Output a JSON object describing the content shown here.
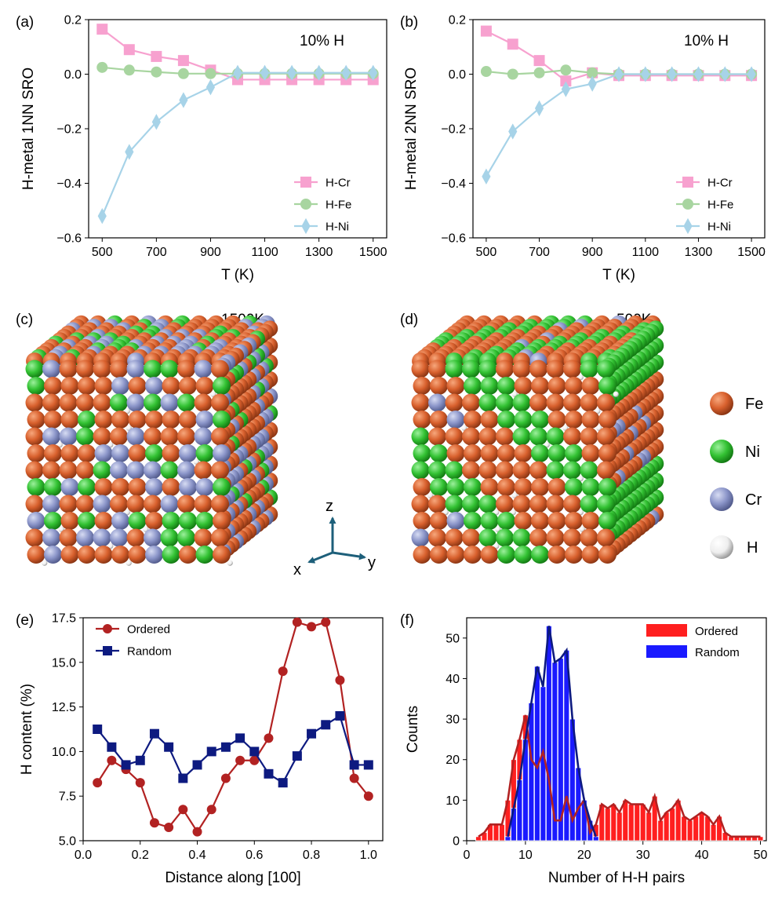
{
  "colors": {
    "cr_line": "#f7a1cf",
    "fe_line": "#a8d5a0",
    "ni_line": "#a7d3e8",
    "ordered": "#b22222",
    "random": "#0d1a80",
    "hist_ordered": "#ff1f1f",
    "hist_random": "#1a1aff",
    "fe_atom": "#d8602d",
    "ni_atom": "#33c233",
    "cr_atom": "#8b95c9",
    "h_atom": "#f3f3f3",
    "arrow": "#1d5f7a"
  },
  "axes_text": {
    "coord_axes": {
      "x": "x",
      "y": "y",
      "z": "z"
    },
    "atom_legend": {
      "fe": "Fe",
      "ni": "Ni",
      "cr": "Cr",
      "h": "H"
    }
  },
  "panels": {
    "c": {
      "label": "(c)",
      "temp": "1500K"
    },
    "d": {
      "label": "(d)",
      "temp": "500K"
    }
  },
  "chart_data": [
    {
      "id": "a",
      "panel_label": "(a)",
      "type": "line",
      "annotation": "10% H",
      "xlabel": "T (K)",
      "ylabel": "H-metal 1NN SRO",
      "xlim": [
        450,
        1550
      ],
      "ylim": [
        -0.6,
        0.2
      ],
      "xticks": [
        500,
        700,
        900,
        1100,
        1300,
        1500
      ],
      "yticks": [
        -0.6,
        -0.4,
        -0.2,
        0.0,
        0.2
      ],
      "ytick_labels": [
        "−0.6",
        "−0.4",
        "−0.2",
        "0.0",
        "0.2"
      ],
      "x": [
        500,
        600,
        700,
        800,
        900,
        1000,
        1100,
        1200,
        1300,
        1400,
        1500
      ],
      "series": [
        {
          "name": "H-Cr",
          "marker": "square",
          "color_key": "cr_line",
          "values": [
            0.165,
            0.09,
            0.065,
            0.05,
            0.015,
            -0.02,
            -0.02,
            -0.02,
            -0.02,
            -0.02,
            -0.02
          ]
        },
        {
          "name": "H-Fe",
          "marker": "circle",
          "color_key": "fe_line",
          "values": [
            0.025,
            0.015,
            0.008,
            0.002,
            0.002,
            0.002,
            0.002,
            0.002,
            0.002,
            0.002,
            0.002
          ]
        },
        {
          "name": "H-Ni",
          "marker": "diamond",
          "color_key": "ni_line",
          "values": [
            -0.52,
            -0.285,
            -0.175,
            -0.095,
            -0.048,
            0.005,
            0.005,
            0.005,
            0.005,
            0.005,
            0.005
          ]
        }
      ],
      "legend": "lower right"
    },
    {
      "id": "b",
      "panel_label": "(b)",
      "type": "line",
      "annotation": "10% H",
      "xlabel": "T (K)",
      "ylabel": "H-metal 2NN SRO",
      "xlim": [
        450,
        1550
      ],
      "ylim": [
        -0.6,
        0.2
      ],
      "xticks": [
        500,
        700,
        900,
        1100,
        1300,
        1500
      ],
      "yticks": [
        -0.6,
        -0.4,
        -0.2,
        0.0,
        0.2
      ],
      "ytick_labels": [
        "−0.6",
        "−0.4",
        "−0.2",
        "0.0",
        "0.2"
      ],
      "x": [
        500,
        600,
        700,
        800,
        900,
        1000,
        1100,
        1200,
        1300,
        1400,
        1500
      ],
      "series": [
        {
          "name": "H-Cr",
          "marker": "square",
          "color_key": "cr_line",
          "values": [
            0.158,
            0.11,
            0.05,
            -0.025,
            0.005,
            -0.005,
            -0.005,
            -0.005,
            -0.005,
            -0.005,
            -0.005
          ]
        },
        {
          "name": "H-Fe",
          "marker": "circle",
          "color_key": "fe_line",
          "values": [
            0.01,
            0.0,
            0.005,
            0.015,
            0.005,
            0.0,
            0.0,
            0.0,
            0.0,
            0.0,
            0.0
          ]
        },
        {
          "name": "H-Ni",
          "marker": "diamond",
          "color_key": "ni_line",
          "values": [
            -0.375,
            -0.21,
            -0.125,
            -0.055,
            -0.035,
            0.0,
            0.0,
            0.0,
            0.0,
            0.0,
            0.0
          ]
        }
      ],
      "legend": "lower right"
    },
    {
      "id": "e",
      "panel_label": "(e)",
      "type": "line",
      "xlabel": "Distance along [100]",
      "ylabel": "H content (%)",
      "xlim": [
        0.0,
        1.05
      ],
      "ylim": [
        5.0,
        17.5
      ],
      "xticks": [
        0.0,
        0.2,
        0.4,
        0.6,
        0.8,
        1.0
      ],
      "xtick_labels": [
        "0.0",
        "0.2",
        "0.4",
        "0.6",
        "0.8",
        "1.0"
      ],
      "yticks": [
        5.0,
        7.5,
        10.0,
        12.5,
        15.0,
        17.5
      ],
      "ytick_labels": [
        "5.0",
        "7.5",
        "10.0",
        "12.5",
        "15.0",
        "17.5"
      ],
      "x": [
        0.05,
        0.1,
        0.15,
        0.2,
        0.25,
        0.3,
        0.35,
        0.4,
        0.45,
        0.5,
        0.55,
        0.6,
        0.65,
        0.7,
        0.75,
        0.8,
        0.85,
        0.9,
        0.95,
        1.0
      ],
      "series": [
        {
          "name": "Ordered",
          "marker": "circle",
          "color_key": "ordered",
          "values": [
            8.25,
            9.5,
            9.0,
            8.25,
            6.0,
            5.75,
            6.75,
            5.5,
            6.75,
            8.5,
            9.5,
            9.5,
            10.75,
            14.5,
            17.25,
            17.0,
            17.25,
            14.0,
            8.5,
            7.5
          ]
        },
        {
          "name": "Random",
          "marker": "square",
          "color_key": "random",
          "values": [
            11.25,
            10.25,
            9.25,
            9.5,
            11.0,
            10.25,
            8.5,
            9.25,
            10.0,
            10.25,
            10.75,
            10.0,
            8.75,
            8.25,
            9.75,
            11.0,
            11.5,
            12.0,
            9.25,
            9.25
          ]
        }
      ],
      "legend": "upper left"
    },
    {
      "id": "f",
      "panel_label": "(f)",
      "type": "bar",
      "xlabel": "Number of H-H pairs",
      "ylabel": "Counts",
      "xlim": [
        0,
        51
      ],
      "ylim": [
        0,
        55
      ],
      "xticks": [
        0,
        10,
        20,
        30,
        40,
        50
      ],
      "yticks": [
        0,
        10,
        20,
        30,
        40,
        50
      ],
      "series": [
        {
          "name": "Ordered",
          "color_key": "hist_ordered",
          "line_key": "ordered",
          "x": [
            2,
            3,
            4,
            5,
            6,
            7,
            8,
            9,
            10,
            11,
            12,
            13,
            14,
            15,
            16,
            17,
            18,
            19,
            20,
            21,
            22,
            23,
            24,
            25,
            26,
            27,
            28,
            29,
            30,
            31,
            32,
            33,
            34,
            35,
            36,
            37,
            38,
            39,
            40,
            41,
            42,
            43,
            44,
            45,
            46,
            47,
            48,
            49,
            50
          ],
          "values": [
            1,
            2,
            4,
            4,
            4,
            10,
            20,
            25,
            31,
            20,
            18,
            22,
            15,
            5,
            5,
            11,
            5,
            8,
            10,
            2,
            4,
            9,
            8,
            9,
            7,
            10,
            9,
            9,
            9,
            7,
            11,
            5,
            7,
            8,
            10,
            6,
            5,
            6,
            7,
            6,
            4,
            6,
            2,
            1,
            1,
            1,
            1,
            1,
            1
          ]
        },
        {
          "name": "Random",
          "color_key": "hist_random",
          "line_key": "random",
          "x": [
            7,
            8,
            9,
            10,
            11,
            12,
            13,
            14,
            15,
            16,
            17,
            18,
            19,
            20,
            21,
            22
          ],
          "values": [
            1,
            8,
            15,
            25,
            34,
            43,
            38,
            53,
            44,
            45,
            47,
            30,
            18,
            10,
            5,
            1
          ]
        }
      ],
      "legend": "upper right"
    }
  ]
}
